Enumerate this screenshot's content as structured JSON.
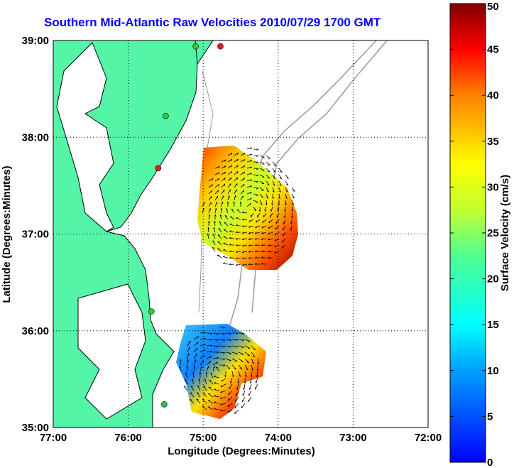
{
  "title": "Southern Mid-Atlantic Raw Velocities 2010/07/29 1700 GMT",
  "map": {
    "x_axis_label": "Longitude (Degrees:Minutes)",
    "y_axis_label": "Latitude (Degrees:Minutes)",
    "x_ticks": [
      "77:00",
      "76:00",
      "75:00",
      "74:00",
      "73:00",
      "72:00"
    ],
    "y_ticks": [
      "39:00",
      "38:00",
      "37:00",
      "36:00",
      "35:00"
    ],
    "lon_range": [
      -77,
      -72
    ],
    "lat_range": [
      35,
      39
    ],
    "grid": "dotted",
    "land_color": "#55f5a8",
    "coastline_color": "#000000",
    "bathymetry_color": "#999999",
    "station_markers": [
      {
        "lon": -74.77,
        "lat": 38.94,
        "color": "#e02020"
      },
      {
        "lon": -75.1,
        "lat": 38.94,
        "color": "#2ecc40"
      },
      {
        "lon": -75.5,
        "lat": 38.22,
        "color": "#2ecc40"
      },
      {
        "lon": -75.6,
        "lat": 37.68,
        "color": "#e02020"
      },
      {
        "lon": -75.69,
        "lat": 36.2,
        "color": "#2ecc40"
      },
      {
        "lon": -75.52,
        "lat": 35.24,
        "color": "#2ecc40"
      }
    ]
  },
  "colorbar": {
    "label": "Surface Velocity (cm/s)",
    "ticks": [
      "0",
      "5",
      "10",
      "15",
      "20",
      "25",
      "30",
      "35",
      "40",
      "45",
      "50"
    ],
    "range": [
      0,
      50
    ],
    "colormap": "jet"
  }
}
